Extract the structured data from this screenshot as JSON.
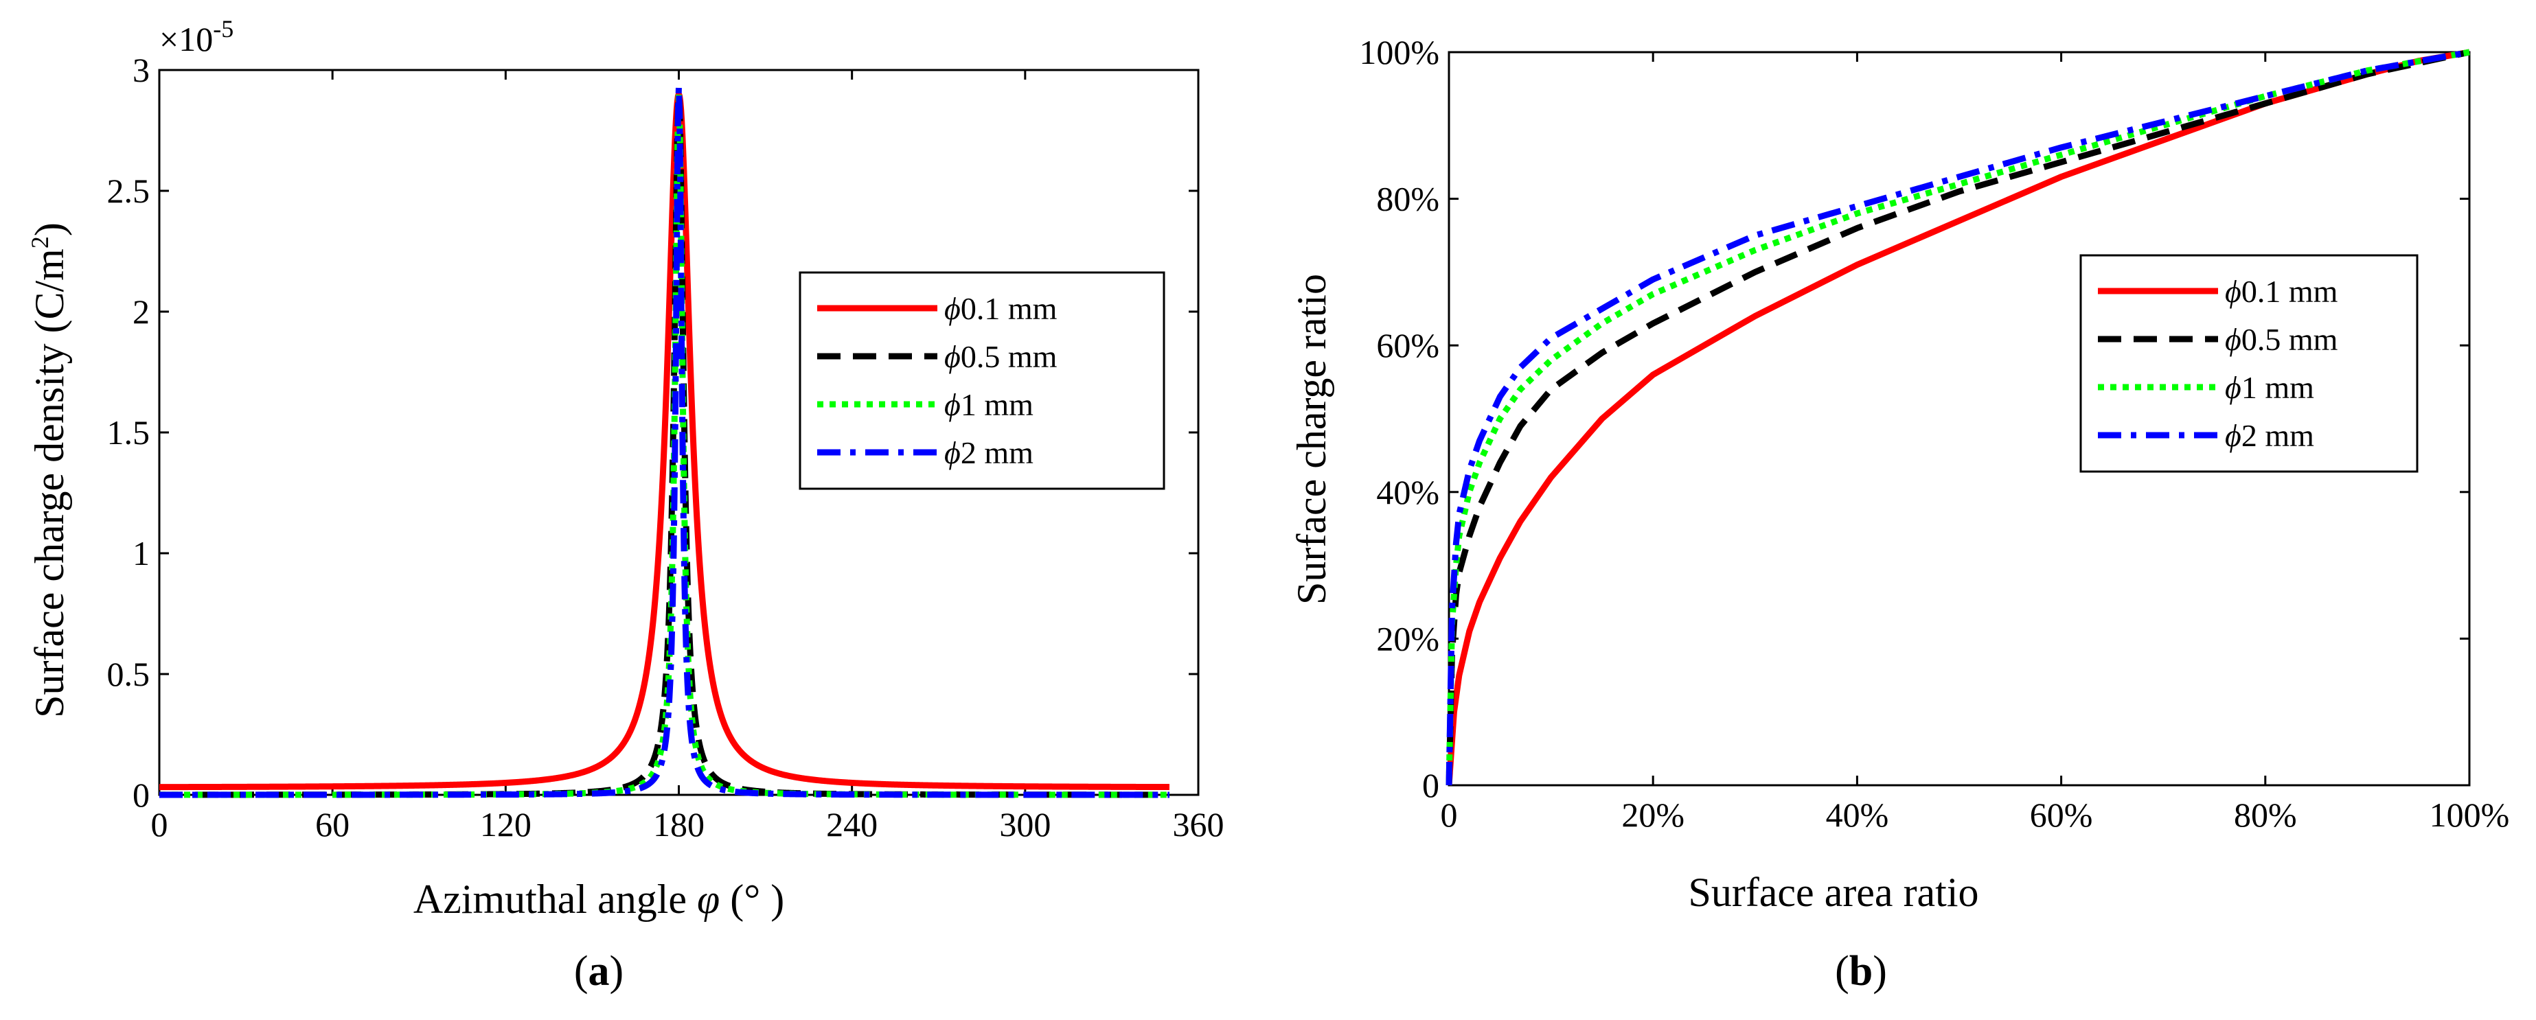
{
  "chart_data": [
    {
      "type": "line",
      "caption_prefix": "(",
      "caption_letter": "a",
      "caption_suffix": ")",
      "xlabel": "Azimuthal angle φ (°)",
      "xlabel_main": "Azimuthal angle ",
      "xlabel_symbol": "φ",
      "xlabel_unit": " (°  )",
      "ylabel": "Surface charge density (C/m2)",
      "ylabel_main": "Surface charge density (C/m",
      "ylabel_sup": "2",
      "ylabel_close": ")",
      "exponent_base": "×10",
      "exponent_power": "-5",
      "xlim": [
        0,
        360
      ],
      "ylim": [
        0,
        3
      ],
      "xticks": [
        0,
        60,
        120,
        180,
        240,
        300,
        360
      ],
      "xtick_labels": [
        "0",
        "60",
        "120",
        "180",
        "240",
        "300",
        "360"
      ],
      "yticks": [
        0,
        0.5,
        1,
        1.5,
        2,
        2.5,
        3
      ],
      "ytick_labels": [
        "0",
        "0.5",
        "1",
        "1.5",
        "2",
        "2.5",
        "3"
      ],
      "legend_position": "right-middle",
      "series": [
        {
          "name": "ϕ0.1 mm",
          "symbol": "ϕ",
          "text": "0.1 mm",
          "color": "#ff0000",
          "dash": "solid",
          "peak": 2.9,
          "width": 5.0,
          "baseline": 0.03
        },
        {
          "name": "ϕ0.5 mm",
          "symbol": "ϕ",
          "text": "0.5 mm",
          "color": "#000000",
          "dash": "dashed",
          "peak": 2.9,
          "width": 2.0,
          "baseline": 0.0
        },
        {
          "name": "ϕ1 mm",
          "symbol": "ϕ",
          "text": "1 mm",
          "color": "#00ff00",
          "dash": "dotted",
          "peak": 2.9,
          "width": 1.6,
          "baseline": 0.0
        },
        {
          "name": "ϕ2 mm",
          "symbol": "ϕ",
          "text": "2 mm",
          "color": "#0000ff",
          "dash": "dashdot",
          "peak": 2.93,
          "width": 1.3,
          "baseline": 0.0
        }
      ]
    },
    {
      "type": "line",
      "caption_prefix": "(",
      "caption_letter": "b",
      "caption_suffix": ")",
      "xlabel": "Surface area ratio",
      "ylabel": "Surface charge ratio",
      "xlim": [
        0,
        100
      ],
      "ylim": [
        0,
        100
      ],
      "xticks": [
        0,
        20,
        40,
        60,
        80,
        100
      ],
      "xtick_labels": [
        "0",
        "20%",
        "40%",
        "60%",
        "80%",
        "100%"
      ],
      "yticks": [
        0,
        20,
        40,
        60,
        80,
        100
      ],
      "ytick_labels": [
        "0",
        "20%",
        "40%",
        "60%",
        "80%",
        "100%"
      ],
      "legend_position": "right-middle",
      "series": [
        {
          "name": "ϕ0.1 mm",
          "symbol": "ϕ",
          "text": "0.1 mm",
          "color": "#ff0000",
          "dash": "solid",
          "x": [
            0,
            0.5,
            1,
            2,
            3,
            5,
            7,
            10,
            15,
            20,
            30,
            40,
            50,
            60,
            70,
            80,
            90,
            95,
            100
          ],
          "y": [
            0,
            10,
            15,
            21,
            25,
            31,
            36,
            42,
            50,
            56,
            64,
            71,
            77,
            83,
            88,
            93,
            97,
            98.8,
            100
          ]
        },
        {
          "name": "ϕ0.5 mm",
          "symbol": "ϕ",
          "text": "0.5 mm",
          "color": "#000000",
          "dash": "dashed",
          "x": [
            0,
            0.3,
            0.7,
            1,
            2,
            3,
            5,
            7,
            10,
            15,
            20,
            30,
            40,
            50,
            60,
            70,
            80,
            90,
            100
          ],
          "y": [
            0,
            18,
            26,
            29,
            34,
            38,
            44,
            49,
            54,
            59,
            63,
            70,
            76,
            81,
            85,
            89,
            93,
            97,
            100
          ]
        },
        {
          "name": "ϕ1 mm",
          "symbol": "ϕ",
          "text": "1 mm",
          "color": "#00ff00",
          "dash": "dotted",
          "x": [
            0,
            0.3,
            0.7,
            1,
            2,
            3,
            5,
            7,
            10,
            15,
            20,
            30,
            40,
            50,
            60,
            70,
            80,
            90,
            100
          ],
          "y": [
            0,
            22,
            30,
            34,
            40,
            44,
            50,
            54,
            58,
            63,
            67,
            73,
            78,
            82,
            86,
            90,
            94,
            97.5,
            100
          ]
        },
        {
          "name": "ϕ2 mm",
          "symbol": "ϕ",
          "text": "2 mm",
          "color": "#0000ff",
          "dash": "dashdot",
          "x": [
            0,
            0.3,
            0.7,
            1,
            2,
            3,
            5,
            7,
            10,
            15,
            20,
            30,
            40,
            50,
            60,
            70,
            80,
            90,
            100
          ],
          "y": [
            0,
            24,
            33,
            37,
            43,
            47,
            53,
            57,
            61,
            65,
            69,
            75,
            79,
            83,
            87,
            90.5,
            94,
            97.5,
            100
          ]
        }
      ]
    }
  ]
}
